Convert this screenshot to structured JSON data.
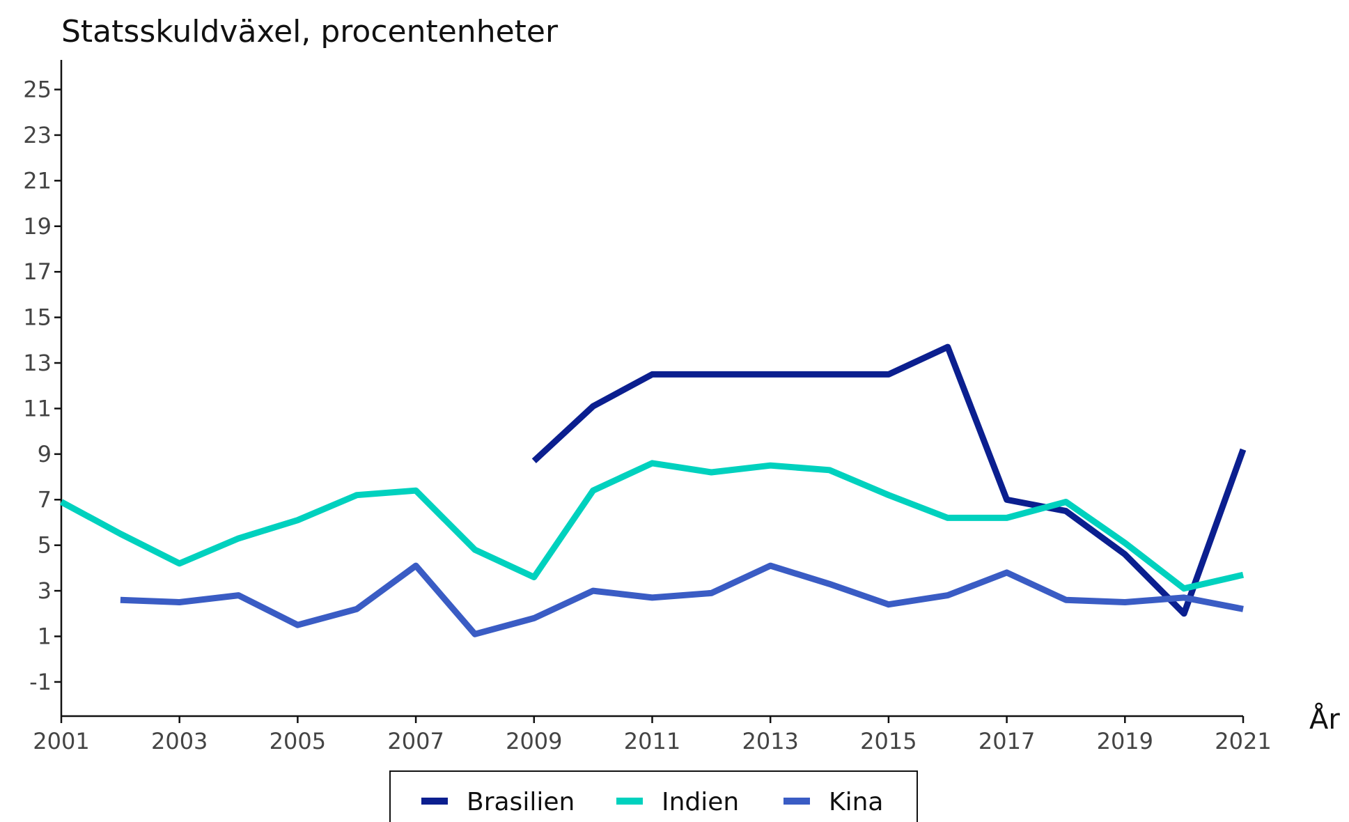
{
  "chart_data": {
    "type": "line",
    "title": "Statsskuldväxel, procentenheter",
    "xlabel": "År",
    "ylabel": "",
    "xlim": [
      2001,
      2021
    ],
    "ylim": [
      -2.5,
      26.3
    ],
    "x_ticks": [
      2001,
      2003,
      2005,
      2007,
      2009,
      2011,
      2013,
      2015,
      2017,
      2019,
      2021
    ],
    "y_ticks": [
      -1,
      1,
      3,
      5,
      7,
      9,
      11,
      13,
      15,
      17,
      19,
      21,
      23,
      25
    ],
    "grid": false,
    "legend_position": "bottom",
    "series": [
      {
        "name": "Brasilien",
        "color": "#0b1f8f",
        "x": [
          2009,
          2010,
          2011,
          2012,
          2013,
          2014,
          2015,
          2016,
          2017,
          2018,
          2019,
          2020,
          2021
        ],
        "values": [
          8.7,
          11.1,
          12.5,
          12.5,
          12.5,
          12.5,
          12.5,
          13.7,
          7.0,
          6.5,
          4.6,
          2.0,
          9.2
        ]
      },
      {
        "name": "Indien",
        "color": "#00d1be",
        "x": [
          2001,
          2002,
          2003,
          2004,
          2005,
          2006,
          2007,
          2008,
          2009,
          2010,
          2011,
          2012,
          2013,
          2014,
          2015,
          2016,
          2017,
          2018,
          2019,
          2020,
          2021
        ],
        "values": [
          6.9,
          5.5,
          4.2,
          5.3,
          6.1,
          7.2,
          7.4,
          4.8,
          3.6,
          7.4,
          8.6,
          8.2,
          8.5,
          8.3,
          7.2,
          6.2,
          6.2,
          6.9,
          5.1,
          3.1,
          3.7
        ]
      },
      {
        "name": "Kina",
        "color": "#3a5cc4",
        "x": [
          2002,
          2003,
          2004,
          2005,
          2006,
          2007,
          2008,
          2009,
          2010,
          2011,
          2012,
          2013,
          2014,
          2015,
          2016,
          2017,
          2018,
          2019,
          2020,
          2021
        ],
        "values": [
          2.6,
          2.5,
          2.8,
          1.5,
          2.2,
          4.1,
          1.1,
          1.8,
          3.0,
          2.7,
          2.9,
          4.1,
          3.3,
          2.4,
          2.8,
          3.8,
          2.6,
          2.5,
          2.7,
          2.2
        ]
      }
    ]
  }
}
